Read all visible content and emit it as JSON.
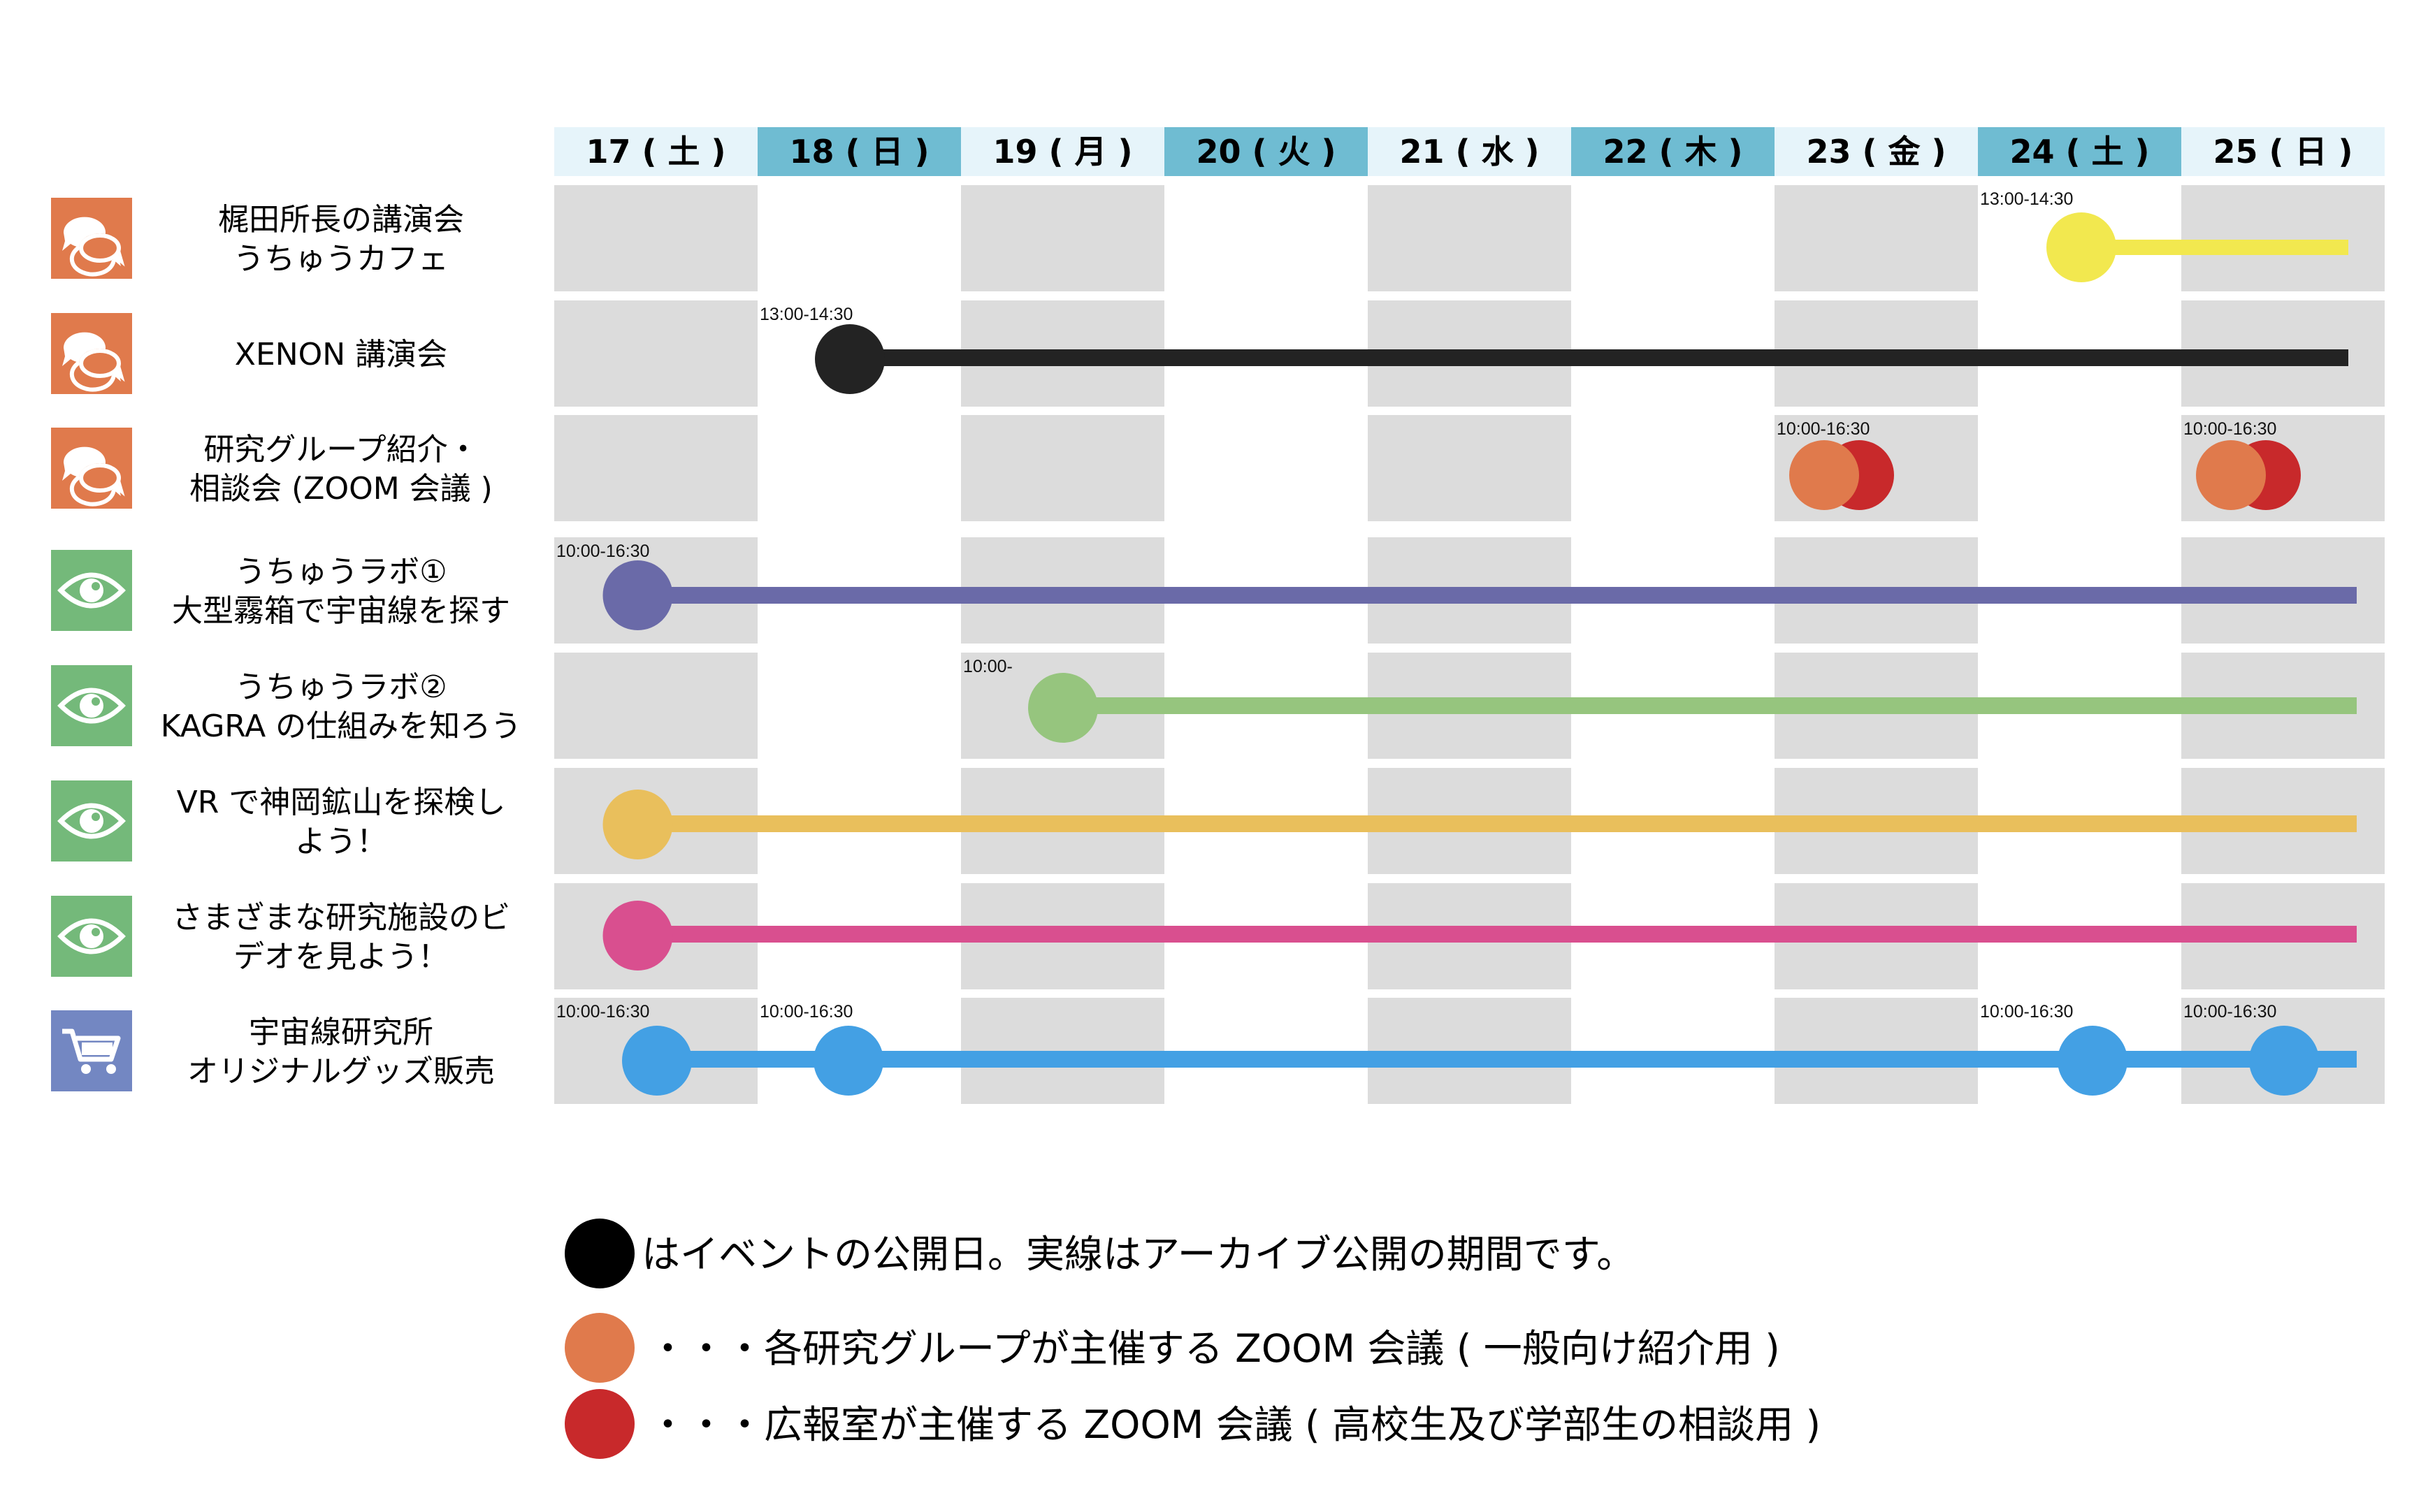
{
  "colors": {
    "header_light": "#e6f4fa",
    "header_dark": "#6fbcd2",
    "cell_gray": "#dcdcdc",
    "icon_talk": "#e07a4c",
    "icon_view": "#74b97a",
    "icon_shop": "#7387c2",
    "zoom_general": "#e07a4c",
    "zoom_pr": "#c8292b"
  },
  "days": [
    {
      "label": "17 ( 土 )",
      "shade": "light"
    },
    {
      "label": "18 ( 日 )",
      "shade": "dark"
    },
    {
      "label": "19 ( 月 )",
      "shade": "light"
    },
    {
      "label": "20 ( 火 )",
      "shade": "dark"
    },
    {
      "label": "21 ( 水 )",
      "shade": "light"
    },
    {
      "label": "22 ( 木 )",
      "shade": "dark"
    },
    {
      "label": "23 ( 金 )",
      "shade": "light"
    },
    {
      "label": "24 ( 土 )",
      "shade": "dark"
    },
    {
      "label": "25 ( 日 )",
      "shade": "light"
    }
  ],
  "events": [
    {
      "title": [
        "梶田所長の講演会",
        "うちゅうカフェ"
      ],
      "icon": "speech-bubbles-icon",
      "icon_color": "#e07a4c",
      "color": "#f2e84f",
      "line_start_day": 7,
      "line_end_day": 8,
      "markers": [
        {
          "day": 7,
          "label": "13:00-14:30"
        }
      ]
    },
    {
      "title": [
        "XENON 講演会"
      ],
      "icon": "speech-bubbles-icon",
      "icon_color": "#e07a4c",
      "color": "#232323",
      "line_start_day": 1,
      "line_end_day": 8,
      "markers": [
        {
          "day": 1,
          "label": "13:00-14:30"
        }
      ]
    },
    {
      "title": [
        "研究グループ紹介・",
        "相談会 (ZOOM 会議 )"
      ],
      "icon": "speech-bubbles-icon",
      "icon_color": "#e07a4c",
      "color": null,
      "line_start_day": null,
      "line_end_day": null,
      "markers": [
        {
          "day": 6,
          "label": "10:00-16:30",
          "type": "zoom-pair"
        },
        {
          "day": 8,
          "label": "10:00-16:30",
          "type": "zoom-pair"
        }
      ]
    },
    {
      "title": [
        "うちゅうラボ①",
        "大型霧箱で宇宙線を探す"
      ],
      "icon": "eye-icon",
      "icon_color": "#74b97a",
      "color": "#6a6aa8",
      "line_start_day": 0,
      "line_end_day": 8,
      "markers": [
        {
          "day": 0,
          "label": "10:00-16:30"
        }
      ]
    },
    {
      "title": [
        "うちゅうラボ②",
        "KAGRA の仕組みを知ろう"
      ],
      "icon": "eye-icon",
      "icon_color": "#74b97a",
      "color": "#96c57e",
      "line_start_day": 2,
      "line_end_day": 8,
      "markers": [
        {
          "day": 2,
          "label": "10:00-"
        }
      ]
    },
    {
      "title": [
        "VR で神岡鉱山を探検し",
        "よう！"
      ],
      "icon": "eye-icon",
      "icon_color": "#74b97a",
      "color": "#e9bf5c",
      "line_start_day": 0,
      "line_end_day": 8,
      "markers": [
        {
          "day": 0,
          "label": ""
        }
      ]
    },
    {
      "title": [
        "さまざまな研究施設のビ",
        "デオを見よう！"
      ],
      "icon": "eye-icon",
      "icon_color": "#74b97a",
      "color": "#d94f8f",
      "line_start_day": 0,
      "line_end_day": 8,
      "markers": [
        {
          "day": 0,
          "label": ""
        }
      ]
    },
    {
      "title": [
        "宇宙線研究所",
        "オリジナルグッズ販売"
      ],
      "icon": "shopping-cart-icon",
      "icon_color": "#7387c2",
      "color": "#43a0e4",
      "line_start_day": 0,
      "line_end_day": 8,
      "markers": [
        {
          "day": 0,
          "label": "10:00-16:30"
        },
        {
          "day": 1,
          "label": "10:00-16:30"
        },
        {
          "day": 7,
          "label": "10:00-16:30"
        },
        {
          "day": 8,
          "label": "10:00-16:30"
        }
      ]
    }
  ],
  "legend": [
    {
      "color": "#000000",
      "text": "はイベントの公開日。実線はアーカイブ公開の期間です。"
    },
    {
      "color": "#e07a4c",
      "text": "・・・各研究グループが主催する ZOOM 会議 ( 一般向け紹介用 )"
    },
    {
      "color": "#c8292b",
      "text": "・・・広報室が主催する ZOOM 会議 ( 高校生及び学部生の相談用 )"
    }
  ]
}
